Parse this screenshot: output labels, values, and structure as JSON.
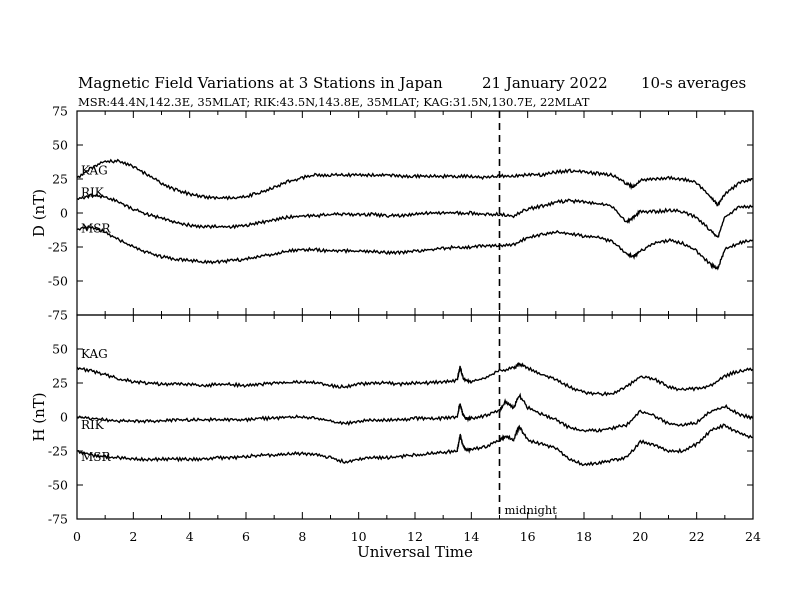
{
  "header": {
    "title": "Magnetic Field Variations at 3 Stations in Japan",
    "date": "21  January  2022",
    "averaging": "10-s averages",
    "stations_line": "MSR:44.4N,142.3E, 35MLAT;  RIK:43.5N,143.8E, 35MLAT;  KAG:31.5N,130.7E, 22MLAT"
  },
  "marker": {
    "label": "midnight",
    "x": 15
  },
  "chart_data": [
    {
      "type": "line",
      "panel": "D",
      "ylabel": "D (nT)",
      "xlim": [
        0,
        24
      ],
      "ylim": [
        -75,
        75
      ],
      "yticks": [
        75,
        50,
        25,
        0,
        -25,
        -50,
        -75
      ],
      "colors": {
        "line": "#000000"
      },
      "series": [
        {
          "name": "KAG",
          "x": [
            0,
            0.5,
            1,
            1.5,
            2,
            2.5,
            3,
            3.5,
            4,
            4.5,
            5,
            5.5,
            6,
            6.5,
            7,
            7.5,
            8,
            8.5,
            9,
            9.5,
            10,
            10.5,
            11,
            11.5,
            12,
            12.5,
            13,
            13.5,
            14,
            14.5,
            15,
            15.5,
            16,
            16.5,
            17,
            17.5,
            18,
            18.5,
            19,
            19.5,
            19.75,
            20,
            20.5,
            21,
            21.5,
            22,
            22.5,
            22.75,
            23,
            23.5,
            24
          ],
          "values": [
            26,
            33,
            38,
            38,
            34,
            28,
            22,
            17,
            14,
            12,
            11,
            11,
            12,
            15,
            19,
            23,
            26,
            28,
            28,
            28,
            28,
            28,
            28,
            27,
            27,
            27,
            27,
            27,
            27,
            26,
            27,
            27,
            28,
            28,
            30,
            31,
            30,
            29,
            28,
            22,
            19,
            24,
            25,
            26,
            25,
            22,
            12,
            6,
            14,
            22,
            25
          ]
        },
        {
          "name": "RIK",
          "x": [
            0,
            0.5,
            1,
            1.5,
            2,
            2.5,
            3,
            3.5,
            4,
            4.5,
            5,
            5.5,
            6,
            6.5,
            7,
            7.5,
            8,
            8.5,
            9,
            9.5,
            10,
            10.5,
            11,
            11.5,
            12,
            12.5,
            13,
            13.5,
            14,
            14.5,
            15,
            15.5,
            16,
            16.5,
            17,
            17.5,
            18,
            18.5,
            19,
            19.5,
            19.75,
            20,
            20.5,
            21,
            21.5,
            22,
            22.5,
            22.75,
            23,
            23.5,
            24
          ],
          "values": [
            10,
            13,
            12,
            8,
            3,
            -1,
            -4,
            -7,
            -9,
            -10,
            -10,
            -10,
            -9,
            -7,
            -5,
            -3,
            -2,
            -2,
            -1,
            -1,
            -1,
            -1,
            -2,
            -2,
            -1,
            0,
            0,
            0,
            0,
            -1,
            -1,
            -2,
            3,
            5,
            8,
            9,
            8,
            7,
            5,
            -7,
            -3,
            1,
            1,
            2,
            1,
            -3,
            -13,
            -18,
            -3,
            4,
            5
          ]
        },
        {
          "name": "MSR",
          "x": [
            0,
            0.5,
            1,
            1.5,
            2,
            2.5,
            3,
            3.5,
            4,
            4.5,
            5,
            5.5,
            6,
            6.5,
            7,
            7.5,
            8,
            8.5,
            9,
            9.5,
            10,
            10.5,
            11,
            11.5,
            12,
            12.5,
            13,
            13.5,
            14,
            14.5,
            15,
            15.5,
            16,
            16.5,
            17,
            17.5,
            18,
            18.5,
            19,
            19.5,
            19.75,
            20,
            20.5,
            21,
            21.5,
            22,
            22.5,
            22.75,
            23,
            23.5,
            24
          ],
          "values": [
            -12,
            -10,
            -14,
            -20,
            -25,
            -29,
            -32,
            -34,
            -35,
            -36,
            -36,
            -35,
            -34,
            -32,
            -30,
            -28,
            -27,
            -27,
            -28,
            -28,
            -28,
            -28,
            -29,
            -29,
            -28,
            -27,
            -26,
            -25,
            -25,
            -24,
            -24,
            -23,
            -18,
            -16,
            -14,
            -15,
            -17,
            -18,
            -21,
            -30,
            -32,
            -28,
            -22,
            -20,
            -22,
            -28,
            -38,
            -41,
            -27,
            -22,
            -20
          ]
        }
      ]
    },
    {
      "type": "line",
      "panel": "H",
      "ylabel": "H (nT)",
      "xlabel": "Universal Time",
      "xlim": [
        0,
        24
      ],
      "xticks": [
        0,
        2,
        4,
        6,
        8,
        10,
        12,
        14,
        16,
        18,
        20,
        22,
        24
      ],
      "ylim": [
        -75,
        75
      ],
      "yticks": [
        50,
        25,
        0,
        -25,
        -50,
        -75
      ],
      "colors": {
        "line": "#000000"
      },
      "series": [
        {
          "name": "KAG",
          "x": [
            0,
            0.5,
            1,
            1.5,
            2,
            2.5,
            3,
            3.5,
            4,
            4.5,
            5,
            5.5,
            6,
            6.5,
            7,
            7.5,
            8,
            8.5,
            9,
            9.5,
            10,
            10.5,
            11,
            11.5,
            12,
            12.5,
            13,
            13.5,
            13.6,
            13.7,
            13.8,
            14,
            14.5,
            15,
            15.5,
            15.7,
            16,
            16.5,
            17,
            17.5,
            18,
            18.5,
            19,
            19.5,
            20,
            20.5,
            21,
            21.5,
            22,
            22.5,
            23,
            23.5,
            24
          ],
          "values": [
            36,
            34,
            31,
            28,
            26,
            25,
            24,
            24,
            24,
            23,
            24,
            24,
            23,
            24,
            25,
            25,
            26,
            25,
            23,
            22,
            24,
            25,
            25,
            24,
            25,
            25,
            26,
            27,
            37,
            29,
            27,
            26,
            29,
            34,
            36,
            39,
            36,
            31,
            28,
            22,
            18,
            17,
            17,
            22,
            30,
            28,
            22,
            20,
            21,
            23,
            30,
            34,
            35
          ]
        },
        {
          "name": "RIK",
          "x": [
            0,
            0.5,
            1,
            1.5,
            2,
            2.5,
            3,
            3.5,
            4,
            4.5,
            5,
            5.5,
            6,
            6.5,
            7,
            7.5,
            8,
            8.5,
            9,
            9.5,
            10,
            10.5,
            11,
            11.5,
            12,
            12.5,
            13,
            13.5,
            13.6,
            13.7,
            13.8,
            14,
            14.5,
            15,
            15.2,
            15.5,
            15.7,
            16,
            16.5,
            17,
            17.5,
            18,
            18.5,
            19,
            19.5,
            20,
            20.5,
            21,
            21.5,
            22,
            22.5,
            23,
            23.5,
            24
          ],
          "values": [
            0,
            -1,
            -2,
            -3,
            -3,
            -3,
            -3,
            -2,
            -2,
            -2,
            -2,
            -2,
            -2,
            -1,
            -1,
            0,
            0,
            -1,
            -3,
            -5,
            -3,
            -2,
            -2,
            -2,
            -1,
            -1,
            -1,
            0,
            10,
            2,
            -1,
            -1,
            1,
            5,
            11,
            7,
            16,
            7,
            2,
            -2,
            -8,
            -10,
            -10,
            -8,
            -6,
            4,
            1,
            -5,
            -6,
            -4,
            4,
            8,
            2,
            -1
          ]
        },
        {
          "name": "MSR",
          "x": [
            0,
            0.5,
            1,
            1.5,
            2,
            2.5,
            3,
            3.5,
            4,
            4.5,
            5,
            5.5,
            6,
            6.5,
            7,
            7.5,
            8,
            8.5,
            9,
            9.5,
            10,
            10.5,
            11,
            11.5,
            12,
            12.5,
            13,
            13.5,
            13.6,
            13.7,
            13.8,
            14,
            14.5,
            15,
            15.2,
            15.5,
            15.7,
            16,
            16.5,
            17,
            17.5,
            18,
            18.5,
            19,
            19.5,
            20,
            20.5,
            21,
            21.5,
            22,
            22.5,
            23,
            23.5,
            24
          ],
          "values": [
            -25,
            -28,
            -29,
            -30,
            -31,
            -31,
            -31,
            -31,
            -31,
            -31,
            -30,
            -30,
            -29,
            -28,
            -28,
            -27,
            -27,
            -28,
            -30,
            -33,
            -31,
            -30,
            -30,
            -29,
            -28,
            -27,
            -26,
            -25,
            -13,
            -21,
            -24,
            -24,
            -22,
            -17,
            -14,
            -17,
            -7,
            -17,
            -20,
            -23,
            -31,
            -35,
            -34,
            -32,
            -30,
            -18,
            -21,
            -25,
            -25,
            -20,
            -10,
            -6,
            -12,
            -15
          ]
        }
      ]
    }
  ]
}
